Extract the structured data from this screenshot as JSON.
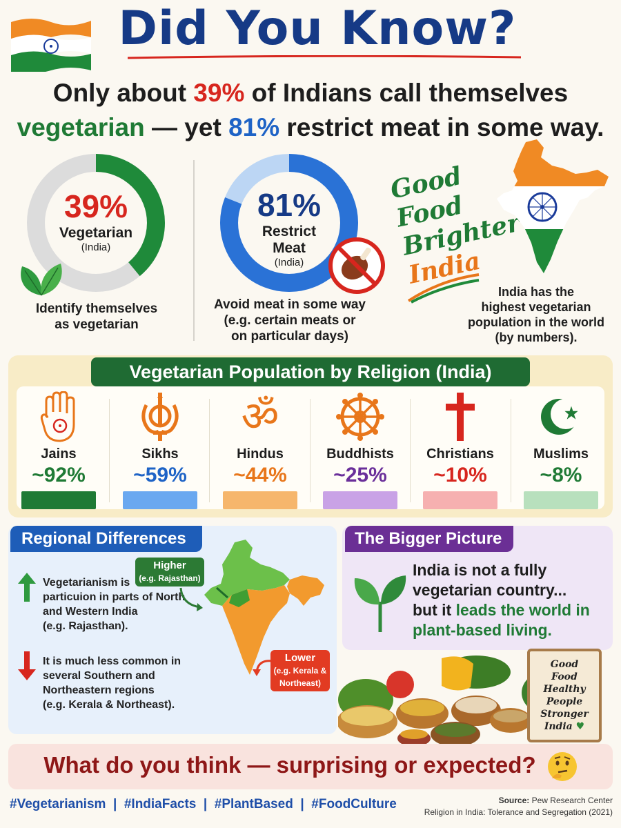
{
  "header": {
    "title": "Did You Know?",
    "subhead_line1_a": "Only about ",
    "subhead_line1_pct": "39%",
    "subhead_line1_b": " of Indians call themselves",
    "subhead_line2_a": "vegetarian",
    "subhead_line2_b": " — yet ",
    "subhead_line2_pct": "81%",
    "subhead_line2_c": " restrict meat in some way."
  },
  "stats": {
    "vegetarian": {
      "pct_value": 39,
      "pct": "39%",
      "label": "Vegetarian",
      "sub": "(India)",
      "caption_1": "Identify themselves",
      "caption_2": "as vegetarian"
    },
    "restrict": {
      "pct_value": 81,
      "pct": "81%",
      "label_1": "Restrict",
      "label_2": "Meat",
      "sub": "(India)",
      "caption_1": "Avoid meat in some way",
      "caption_2": "(e.g. certain meats or",
      "caption_3": "on particular days)"
    }
  },
  "brand": {
    "script_1": "Good",
    "script_2": "Food",
    "script_3": "Brighter",
    "script_4": "India",
    "map_caption_1": "India has the",
    "map_caption_2": "highest vegetarian",
    "map_caption_3": "population in the world",
    "map_caption_4": "(by numbers)."
  },
  "religion": {
    "title": "Vegetarian Population by Religion (India)",
    "items": [
      {
        "name": "Jains",
        "value": "~92%",
        "level": 0.92,
        "color": "#1f7a35",
        "icon": "jain-hand-icon"
      },
      {
        "name": "Sikhs",
        "value": "~59%",
        "level": 0.59,
        "color": "#1e63c6",
        "icon": "khanda-icon"
      },
      {
        "name": "Hindus",
        "value": "~44%",
        "level": 0.44,
        "color": "#e8761a",
        "icon": "om-icon"
      },
      {
        "name": "Buddhists",
        "value": "~25%",
        "level": 0.25,
        "color": "#6a2f9a",
        "icon": "dharma-wheel-icon"
      },
      {
        "name": "Christians",
        "value": "~10%",
        "level": 0.1,
        "color": "#d7261e",
        "icon": "cross-icon"
      },
      {
        "name": "Muslims",
        "value": "~8%",
        "level": 0.08,
        "color": "#1f7a35",
        "icon": "crescent-star-icon"
      }
    ]
  },
  "regional": {
    "title": "Regional Differences",
    "up_1": "Vegetarianism is",
    "up_2": "particuion in parts of North",
    "up_3": "and Western India",
    "up_4": "(e.g. Rajasthan).",
    "down_1": "It is much less common in",
    "down_2": "several Southern and",
    "down_3": "Northeastern regions",
    "down_4": "(e.g. Kerala & Northeast).",
    "higher_1": "Higher",
    "higher_2": "(e.g. Rajasthan)",
    "lower_1": "Lower",
    "lower_2": "(e.g. Kerala &",
    "lower_3": "Northeast)"
  },
  "bigger": {
    "title": "The Bigger Picture",
    "line_1": "India is not a fully",
    "line_2": "vegetarian country...",
    "line_3a": "but it ",
    "line_3b": "leads the world in",
    "line_4": "plant-based living."
  },
  "sign": {
    "l1": "Good",
    "l2": "Food",
    "l3": "Healthy",
    "l4": "People",
    "l5": "Stronger",
    "l6": "India"
  },
  "footer": {
    "question": "What do you think — surprising or expected?",
    "hashtags": "#Vegetarianism  |  #IndiaFacts  |  #PlantBased  |  #FoodCulture",
    "source_label": "Source:",
    "source_name": " Pew Research Center",
    "source_detail": "Religion in India: Tolerance and Segregation (2021)"
  },
  "colors": {
    "navy": "#163a86",
    "red": "#d7261e",
    "green": "#1f7a35",
    "blue": "#1e63c6",
    "saffron": "#f08a24"
  }
}
